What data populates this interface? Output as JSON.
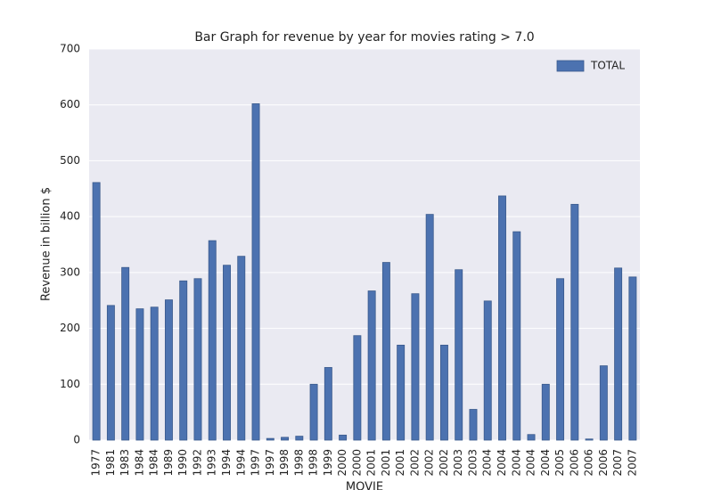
{
  "chart_data": {
    "type": "bar",
    "title": "Bar Graph for revenue by year for movies rating > 7.0",
    "x_label": "MOVIE",
    "y_label": "Revenue in billion $",
    "categories": [
      "1977",
      "1981",
      "1983",
      "1984",
      "1984",
      "1989",
      "1990",
      "1992",
      "1993",
      "1994",
      "1994",
      "1997",
      "1997",
      "1998",
      "1998",
      "1998",
      "1999",
      "2000",
      "2000",
      "2001",
      "2001",
      "2001",
      "2002",
      "2002",
      "2002",
      "2003",
      "2003",
      "2004",
      "2004",
      "2004",
      "2004",
      "2004",
      "2005",
      "2006",
      "2006",
      "2006",
      "2007",
      "2007"
    ],
    "series": [
      {
        "name": "TOTAL",
        "color": "#4c72b0",
        "values": [
          461,
          241,
          309,
          235,
          238,
          251,
          285,
          289,
          357,
          313,
          329,
          602,
          3,
          5,
          7,
          100,
          130,
          9,
          187,
          267,
          318,
          170,
          262,
          404,
          170,
          305,
          55,
          249,
          437,
          373,
          10,
          100,
          289,
          422,
          2,
          133,
          308,
          292
        ]
      }
    ],
    "ylim": [
      0,
      700
    ],
    "yticks": [
      0,
      100,
      200,
      300,
      400,
      500,
      600,
      700
    ],
    "grid": true,
    "legend": "upper right"
  }
}
